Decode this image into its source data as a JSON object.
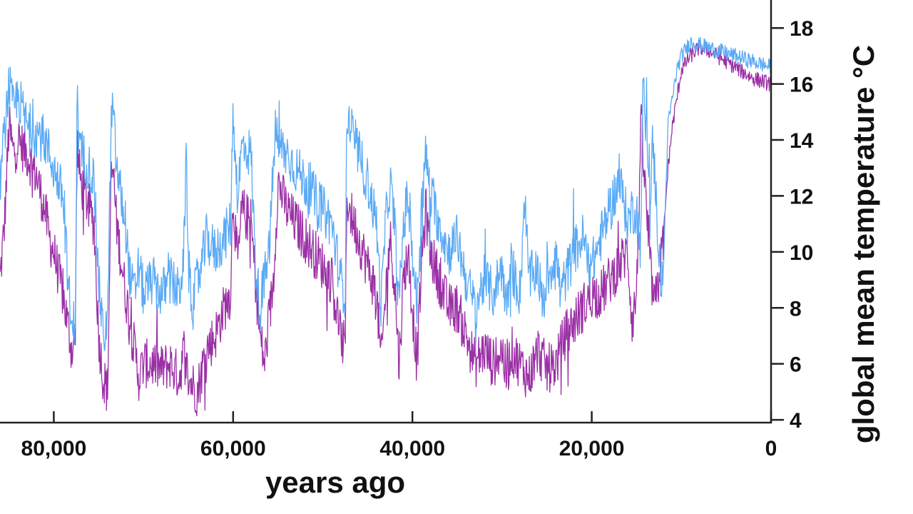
{
  "chart_data": {
    "type": "line",
    "xlabel": "years ago",
    "ylabel": "global mean temperature °C",
    "xlim": [
      86000,
      0
    ],
    "ylim": [
      3.9,
      19
    ],
    "x_ticks": [
      {
        "value": 80000,
        "label": "80,000"
      },
      {
        "value": 60000,
        "label": "60,000"
      },
      {
        "value": 40000,
        "label": "40,000"
      },
      {
        "value": 20000,
        "label": "20,000"
      },
      {
        "value": 0,
        "label": "0"
      }
    ],
    "y_ticks": [
      {
        "value": 4,
        "label": "4"
      },
      {
        "value": 6,
        "label": "6"
      },
      {
        "value": 8,
        "label": "8"
      },
      {
        "value": 10,
        "label": "10"
      },
      {
        "value": 12,
        "label": "12"
      },
      {
        "value": 14,
        "label": "14"
      },
      {
        "value": 16,
        "label": "16"
      },
      {
        "value": 18,
        "label": "18"
      }
    ],
    "grid": false,
    "series": [
      {
        "color": "#5aaaf5",
        "x": [
          86000,
          85000,
          84500,
          84000,
          83000,
          82000,
          81000,
          80000,
          79000,
          78500,
          78000,
          77600,
          77400,
          77200,
          77000,
          76000,
          75500,
          75000,
          74500,
          74000,
          73600,
          73400,
          73200,
          73000,
          72000,
          71500,
          71000,
          70500,
          70000,
          69000,
          68000,
          67000,
          66000,
          65500,
          65200,
          65000,
          64500,
          64000,
          63500,
          63000,
          62000,
          61000,
          60300,
          60000,
          59500,
          59000,
          58000,
          57500,
          57000,
          56500,
          56000,
          55500,
          55300,
          55000,
          54000,
          53000,
          52000,
          51000,
          50000,
          49000,
          48000,
          47500,
          47300,
          47000,
          46000,
          45000,
          44000,
          43500,
          43000,
          42500,
          42000,
          41500,
          41000,
          40500,
          40000,
          39500,
          39000,
          38500,
          38000,
          37000,
          36000,
          35000,
          34000,
          33000,
          32000,
          31000,
          30000,
          29500,
          29000,
          28000,
          27500,
          27000,
          26000,
          25500,
          25000,
          24000,
          23500,
          23000,
          22000,
          21000,
          20000,
          19000,
          18000,
          17000,
          16500,
          16000,
          15500,
          15000,
          14500,
          14300,
          14000,
          13700,
          13500,
          13200,
          13000,
          12500,
          12200,
          12000,
          11700,
          11500,
          11000,
          10500,
          10000,
          9000,
          8000,
          7000,
          6000,
          5000,
          4000,
          3000,
          2000,
          1000,
          0
        ],
        "y": [
          12.5,
          16.0,
          15.0,
          15.6,
          14.5,
          14.3,
          14.0,
          13.0,
          12.0,
          9.5,
          7.0,
          7.8,
          15.5,
          14.0,
          13.6,
          13.0,
          12.5,
          9.0,
          7.0,
          7.5,
          14.5,
          15.2,
          14.0,
          13.0,
          11.0,
          9.0,
          8.5,
          9.5,
          8.5,
          9.0,
          8.5,
          9.0,
          8.5,
          10.0,
          13.5,
          9.5,
          8.0,
          9.0,
          9.5,
          10.5,
          10.0,
          10.5,
          11.0,
          15.0,
          12.0,
          13.8,
          13.5,
          9.5,
          8.0,
          9.0,
          10.0,
          13.0,
          14.5,
          13.8,
          13.5,
          13.0,
          12.5,
          12.0,
          11.5,
          11.0,
          9.0,
          8.5,
          15.0,
          14.5,
          13.5,
          12.5,
          11.0,
          8.0,
          11.0,
          12.5,
          11.0,
          8.0,
          11.0,
          12.0,
          10.0,
          8.0,
          11.5,
          13.5,
          12.0,
          11.0,
          10.0,
          10.5,
          9.0,
          8.0,
          9.0,
          8.5,
          9.5,
          8.0,
          9.5,
          8.5,
          12.0,
          9.0,
          9.5,
          8.0,
          9.0,
          10.0,
          8.5,
          9.0,
          10.0,
          10.5,
          9.5,
          10.5,
          11.5,
          12.5,
          12.0,
          11.0,
          11.5,
          11.5,
          10.0,
          16.5,
          14.5,
          13.5,
          11.0,
          14.0,
          13.0,
          10.0,
          9.0,
          9.5,
          12.5,
          14.5,
          15.5,
          16.5,
          17.0,
          17.5,
          17.4,
          17.3,
          17.2,
          17.1,
          17.0,
          16.9,
          16.8,
          16.7,
          16.6
        ]
      },
      {
        "color": "#9b30a6",
        "x": [
          86000,
          85500,
          85000,
          84500,
          84000,
          83000,
          82000,
          81000,
          80500,
          80000,
          79000,
          78500,
          78000,
          77600,
          77400,
          77200,
          77000,
          76000,
          75500,
          75000,
          74500,
          74000,
          73600,
          73400,
          73200,
          73000,
          72000,
          71000,
          70500,
          70000,
          69000,
          68000,
          67000,
          66000,
          65500,
          65000,
          64000,
          63000,
          62000,
          61000,
          60300,
          60000,
          59500,
          59000,
          58000,
          57000,
          56500,
          56000,
          55500,
          55000,
          54000,
          53000,
          52000,
          51000,
          50000,
          49000,
          48000,
          47500,
          47300,
          47000,
          46000,
          45000,
          44000,
          43500,
          43000,
          42500,
          42000,
          41500,
          41000,
          40500,
          40000,
          39500,
          39000,
          38500,
          38000,
          37000,
          36000,
          35000,
          34000,
          33000,
          32000,
          31000,
          30000,
          29500,
          29000,
          28000,
          27000,
          26000,
          25000,
          24000,
          23000,
          22000,
          21000,
          20000,
          19000,
          18000,
          17000,
          16000,
          15500,
          15000,
          14500,
          14300,
          14000,
          13500,
          13000,
          12500,
          12000,
          11500,
          11000,
          10500,
          10000,
          9000,
          8000,
          7000,
          6000,
          5000,
          4000,
          3000,
          2000,
          1000,
          0
        ],
        "y": [
          9.0,
          11.0,
          14.5,
          13.5,
          14.0,
          13.5,
          12.8,
          11.5,
          10.5,
          10.0,
          8.5,
          7.5,
          6.5,
          7.0,
          14.0,
          13.0,
          12.5,
          11.5,
          11.0,
          7.0,
          5.5,
          5.0,
          12.5,
          13.0,
          12.0,
          11.0,
          8.5,
          6.5,
          5.5,
          6.0,
          6.0,
          5.8,
          6.0,
          5.5,
          6.5,
          5.5,
          5.0,
          6.5,
          7.0,
          8.0,
          8.5,
          12.0,
          9.5,
          11.5,
          11.0,
          7.0,
          6.0,
          7.5,
          9.0,
          12.5,
          11.5,
          11.0,
          10.5,
          10.0,
          9.5,
          9.0,
          7.0,
          6.5,
          12.0,
          11.5,
          10.5,
          9.5,
          8.5,
          6.0,
          8.5,
          10.5,
          9.0,
          6.0,
          9.0,
          10.0,
          8.0,
          6.0,
          9.5,
          11.5,
          10.0,
          9.0,
          8.0,
          8.0,
          7.0,
          6.0,
          6.5,
          6.0,
          6.5,
          5.5,
          6.5,
          6.0,
          5.5,
          6.5,
          5.8,
          6.0,
          7.0,
          7.5,
          8.0,
          8.5,
          8.5,
          9.0,
          9.5,
          10.0,
          7.5,
          8.5,
          14.5,
          13.5,
          12.0,
          9.5,
          8.0,
          9.0,
          10.5,
          13.0,
          14.5,
          15.5,
          16.5,
          17.0,
          17.3,
          17.2,
          17.0,
          16.8,
          16.6,
          16.4,
          16.2,
          16.1,
          16.0
        ]
      }
    ]
  }
}
